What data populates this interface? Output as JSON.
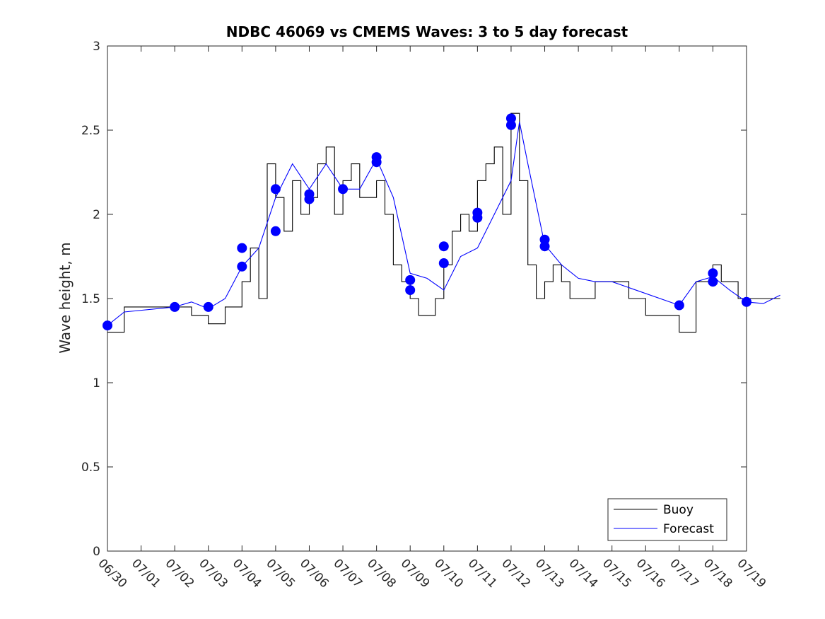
{
  "chart_data": {
    "type": "line",
    "title": "NDBC 46069 vs CMEMS Waves: 3 to 5 day forecast",
    "xlabel": "",
    "ylabel": "Wave height, m",
    "ylim": [
      0,
      3
    ],
    "yticks": [
      0,
      0.5,
      1,
      1.5,
      2,
      2.5,
      3
    ],
    "ytick_labels": [
      "0",
      "0.5",
      "1",
      "1.5",
      "2",
      "2.5",
      "3"
    ],
    "xlim": [
      "06/30",
      "07/19"
    ],
    "xtick_labels": [
      "06/30",
      "07/01",
      "07/02",
      "07/03",
      "07/04",
      "07/05",
      "07/06",
      "07/07",
      "07/08",
      "07/09",
      "07/10",
      "07/11",
      "07/12",
      "07/13",
      "07/14",
      "07/15",
      "07/16",
      "07/17",
      "07/18",
      "07/19"
    ],
    "grid": false,
    "legend": {
      "position": "bottom-right",
      "entries": [
        "Buoy",
        "Forecast"
      ]
    },
    "colors": {
      "buoy": "#000000",
      "forecast": "#0000ff"
    },
    "series": [
      {
        "name": "Buoy",
        "x": [
          "06/30",
          "06/30 12:00",
          "07/01",
          "07/01 12:00",
          "07/02",
          "07/02 12:00",
          "07/03",
          "07/03 06:00",
          "07/03 12:00",
          "07/03 18:00",
          "07/04",
          "07/04 06:00",
          "07/04 12:00",
          "07/04 18:00",
          "07/05",
          "07/05 06:00",
          "07/05 12:00",
          "07/05 18:00",
          "07/06",
          "07/06 06:00",
          "07/06 12:00",
          "07/06 18:00",
          "07/07",
          "07/07 06:00",
          "07/07 12:00",
          "07/07 18:00",
          "07/08",
          "07/08 06:00",
          "07/08 12:00",
          "07/08 18:00",
          "07/09",
          "07/09 06:00",
          "07/09 12:00",
          "07/09 18:00",
          "07/10",
          "07/10 06:00",
          "07/10 12:00",
          "07/10 18:00",
          "07/11",
          "07/11 06:00",
          "07/11 12:00",
          "07/11 18:00",
          "07/12",
          "07/12 06:00",
          "07/12 12:00",
          "07/12 18:00",
          "07/13",
          "07/13 12:00",
          "07/14",
          "07/14 12:00",
          "07/15",
          "07/15 12:00",
          "07/16",
          "07/16 12:00",
          "07/17",
          "07/17 06:00",
          "07/17 12:00",
          "07/17 18:00",
          "07/18",
          "07/18 12:00",
          "07/19"
        ],
        "values": [
          1.3,
          1.45,
          1.45,
          1.4,
          1.35,
          1.45,
          1.6,
          1.8,
          1.5,
          2.3,
          2.1,
          1.9,
          2.2,
          2.0,
          2.1,
          2.3,
          2.4,
          2.0,
          2.2,
          2.3,
          2.1,
          2.1,
          2.2,
          2.0,
          1.7,
          1.6,
          1.5,
          1.4,
          1.4,
          1.5,
          1.7,
          1.9,
          2.0,
          1.9,
          2.2,
          2.3,
          2.4,
          2.0,
          2.6,
          2.2,
          1.7,
          1.5,
          1.6,
          1.7,
          1.6,
          1.5,
          1.5,
          1.6,
          1.6,
          1.5,
          1.4,
          1.4,
          1.3,
          1.6,
          1.7,
          1.6,
          1.6,
          1.5,
          1.5,
          1.5,
          1.5
        ]
      },
      {
        "name": "Forecast",
        "x": [
          "06/30",
          "06/30 12:00",
          "07/01",
          "07/01 12:00",
          "07/02",
          "07/02 12:00",
          "07/03",
          "07/03 12:00",
          "07/04",
          "07/04 12:00",
          "07/05",
          "07/05 12:00",
          "07/06",
          "07/06 12:00",
          "07/07",
          "07/07 12:00",
          "07/08",
          "07/08 12:00",
          "07/09",
          "07/09 12:00",
          "07/10",
          "07/10 12:00",
          "07/11",
          "07/11 06:00",
          "07/11 12:00",
          "07/12",
          "07/12 12:00",
          "07/13",
          "07/13 12:00",
          "07/14",
          "07/16",
          "07/16 12:00",
          "07/17",
          "07/17 12:00",
          "07/18",
          "07/18 12:00",
          "07/19"
        ],
        "values": [
          1.34,
          1.42,
          1.45,
          1.48,
          1.44,
          1.5,
          1.69,
          1.8,
          2.1,
          2.3,
          2.15,
          2.3,
          2.15,
          2.15,
          2.33,
          2.1,
          1.65,
          1.62,
          1.55,
          1.75,
          1.8,
          2.0,
          2.2,
          2.55,
          2.3,
          1.82,
          1.7,
          1.62,
          1.6,
          1.6,
          1.46,
          1.6,
          1.63,
          1.55,
          1.48,
          1.47,
          1.52
        ]
      }
    ],
    "markers": {
      "x": [
        "06/30",
        "07/01",
        "07/02",
        "07/03",
        "07/03",
        "07/04",
        "07/04",
        "07/05",
        "07/05",
        "07/06",
        "07/07",
        "07/07",
        "07/08",
        "07/08",
        "07/09",
        "07/09",
        "07/10",
        "07/10",
        "07/11",
        "07/11",
        "07/12",
        "07/12",
        "07/16",
        "07/17",
        "07/17",
        "07/18"
      ],
      "values": [
        1.34,
        1.45,
        1.45,
        1.8,
        1.69,
        2.15,
        1.9,
        2.12,
        2.09,
        2.15,
        2.34,
        2.31,
        1.61,
        1.55,
        1.81,
        1.71,
        2.01,
        1.98,
        2.57,
        2.53,
        1.85,
        1.81,
        1.46,
        1.65,
        1.6,
        1.48
      ]
    }
  }
}
